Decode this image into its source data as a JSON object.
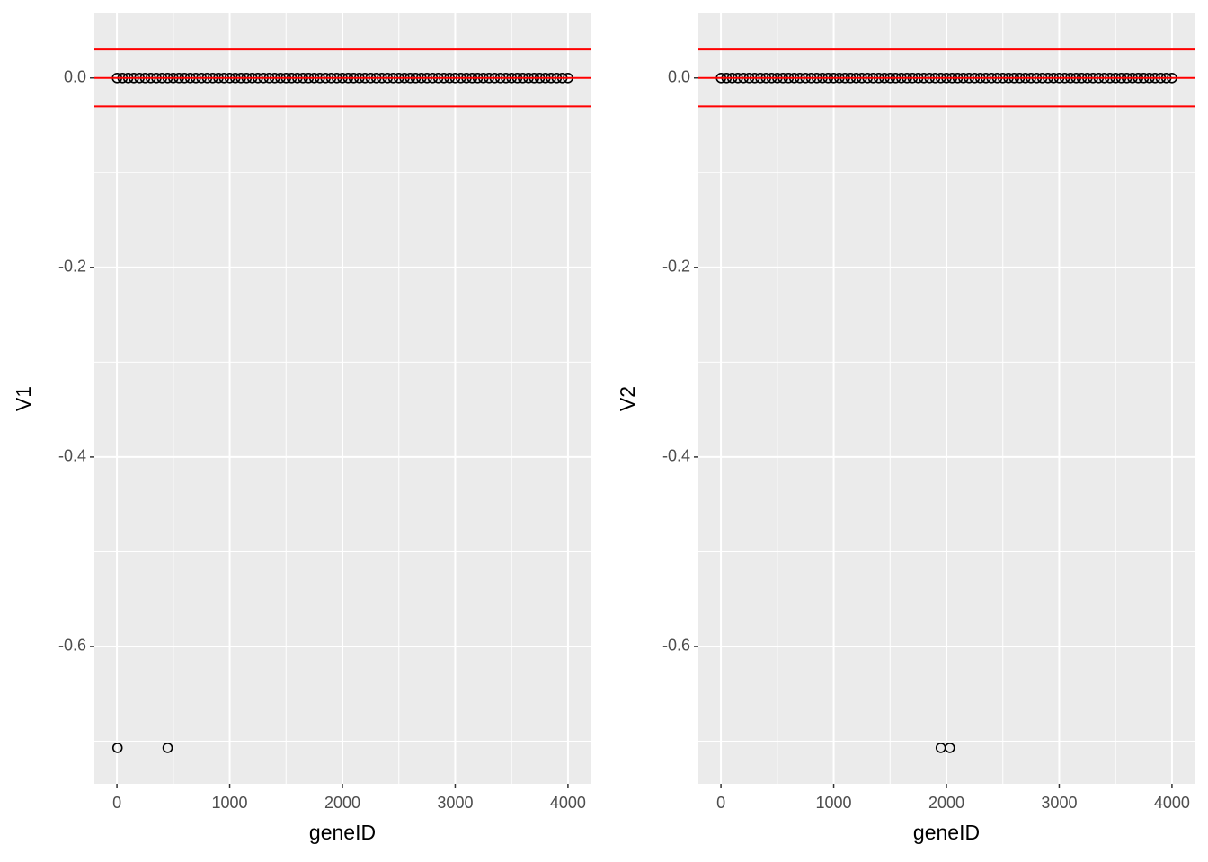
{
  "chart_data": [
    {
      "type": "scatter",
      "x_label": "geneID",
      "y_label": "V1",
      "xlim": [
        -200,
        4200
      ],
      "xticks": [
        0,
        1000,
        2000,
        3000,
        4000
      ],
      "ylim": [
        -0.745,
        0.068
      ],
      "yticks": [
        {
          "value": 0,
          "label": "0.0"
        },
        -0.2,
        -0.4,
        -0.6
      ],
      "grid": true,
      "hlines": [
        0.03,
        0,
        -0.03
      ],
      "hline_color": "#ff0000",
      "series": [
        {
          "color": "#000000",
          "x": [
            1,
            50,
            100,
            150,
            200,
            250,
            300,
            350,
            400,
            450,
            500,
            550,
            600,
            650,
            700,
            750,
            800,
            850,
            900,
            950,
            1000,
            1050,
            1100,
            1150,
            1200,
            1250,
            1300,
            1350,
            1400,
            1450,
            1500,
            1550,
            1600,
            1650,
            1700,
            1750,
            1800,
            1850,
            1900,
            1950,
            2000,
            2050,
            2100,
            2150,
            2200,
            2250,
            2300,
            2350,
            2400,
            2450,
            2500,
            2550,
            2600,
            2650,
            2700,
            2750,
            2800,
            2850,
            2900,
            2950,
            3000,
            3050,
            3100,
            3150,
            3200,
            3250,
            3300,
            3350,
            3400,
            3450,
            3500,
            3550,
            3600,
            3650,
            3700,
            3750,
            3800,
            3850,
            3900,
            3950,
            4000,
            5,
            450
          ],
          "values": [
            0,
            0,
            0,
            0,
            0,
            0,
            0,
            0,
            0,
            0,
            0,
            0,
            0,
            0,
            0,
            0,
            0,
            0,
            0,
            0,
            0,
            0,
            0,
            0,
            0,
            0,
            0,
            0,
            0,
            0,
            0,
            0,
            0,
            0,
            0,
            0,
            0,
            0,
            0,
            0,
            0,
            0,
            0,
            0,
            0,
            0,
            0,
            0,
            0,
            0,
            0,
            0,
            0,
            0,
            0,
            0,
            0,
            0,
            0,
            0,
            0,
            0,
            0,
            0,
            0,
            0,
            0,
            0,
            0,
            0,
            0,
            0,
            0,
            0,
            0,
            0,
            0,
            0,
            0,
            0,
            0,
            -0.707,
            -0.707
          ]
        }
      ]
    },
    {
      "type": "scatter",
      "x_label": "geneID",
      "y_label": "V2",
      "xlim": [
        -200,
        4200
      ],
      "xticks": [
        0,
        1000,
        2000,
        3000,
        4000
      ],
      "ylim": [
        -0.745,
        0.068
      ],
      "yticks": [
        {
          "value": 0,
          "label": "0.0"
        },
        -0.2,
        -0.4,
        -0.6
      ],
      "grid": true,
      "hlines": [
        0.03,
        0,
        -0.03
      ],
      "hline_color": "#ff0000",
      "series": [
        {
          "color": "#000000",
          "x": [
            1,
            50,
            100,
            150,
            200,
            250,
            300,
            350,
            400,
            450,
            500,
            550,
            600,
            650,
            700,
            750,
            800,
            850,
            900,
            950,
            1000,
            1050,
            1100,
            1150,
            1200,
            1250,
            1300,
            1350,
            1400,
            1450,
            1500,
            1550,
            1600,
            1650,
            1700,
            1750,
            1800,
            1850,
            1900,
            1950,
            2000,
            2050,
            2100,
            2150,
            2200,
            2250,
            2300,
            2350,
            2400,
            2450,
            2500,
            2550,
            2600,
            2650,
            2700,
            2750,
            2800,
            2850,
            2900,
            2950,
            3000,
            3050,
            3100,
            3150,
            3200,
            3250,
            3300,
            3350,
            3400,
            3450,
            3500,
            3550,
            3600,
            3650,
            3700,
            3750,
            3800,
            3850,
            3900,
            3950,
            4000,
            1950,
            2030
          ],
          "values": [
            0,
            0,
            0,
            0,
            0,
            0,
            0,
            0,
            0,
            0,
            0,
            0,
            0,
            0,
            0,
            0,
            0,
            0,
            0,
            0,
            0,
            0,
            0,
            0,
            0,
            0,
            0,
            0,
            0,
            0,
            0,
            0,
            0,
            0,
            0,
            0,
            0,
            0,
            0,
            0,
            0,
            0,
            0,
            0,
            0,
            0,
            0,
            0,
            0,
            0,
            0,
            0,
            0,
            0,
            0,
            0,
            0,
            0,
            0,
            0,
            0,
            0,
            0,
            0,
            0,
            0,
            0,
            0,
            0,
            0,
            0,
            0,
            0,
            0,
            0,
            0,
            0,
            0,
            0,
            0,
            0,
            -0.707,
            -0.707
          ]
        }
      ]
    }
  ]
}
